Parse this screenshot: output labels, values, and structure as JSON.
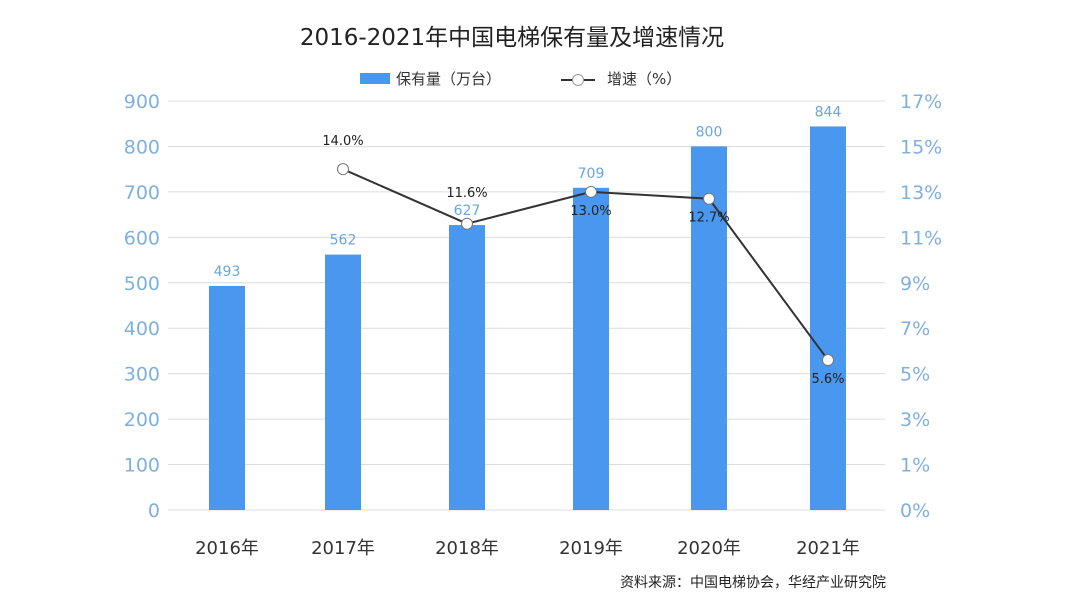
{
  "chart_data": {
    "type": "bar+line",
    "title": "2016-2021年中国电梯保有量及增速情况",
    "categories": [
      "2016年",
      "2017年",
      "2018年",
      "2019年",
      "2020年",
      "2021年"
    ],
    "series": [
      {
        "name": "保有量（万台）",
        "type": "bar",
        "axis": "left",
        "values": [
          493,
          562,
          627,
          709,
          800,
          844
        ],
        "labels": [
          "493",
          "562",
          "627",
          "709",
          "800",
          "844"
        ],
        "color": "#4a97f0"
      },
      {
        "name": "增速（%）",
        "type": "line",
        "axis": "right",
        "values": [
          null,
          14.0,
          11.6,
          13.0,
          12.7,
          5.6
        ],
        "labels": [
          "",
          "14.0%",
          "11.6%",
          "13.0%",
          "12.7%",
          "5.6%"
        ],
        "color": "#333333"
      }
    ],
    "left_axis": {
      "ylim": [
        0,
        900
      ],
      "ticks": [
        "0",
        "100",
        "200",
        "300",
        "400",
        "500",
        "600",
        "700",
        "800",
        "900"
      ],
      "color": "#7fb0e0"
    },
    "right_axis": {
      "ticks": [
        "0%",
        "1%",
        "3%",
        "5%",
        "7%",
        "9%",
        "11%",
        "13%",
        "15%",
        "17%"
      ],
      "color": "#7fb0e0"
    },
    "grid": true,
    "legend": "top"
  },
  "source": "资料来源：中国电梯协会，华经产业研究院"
}
